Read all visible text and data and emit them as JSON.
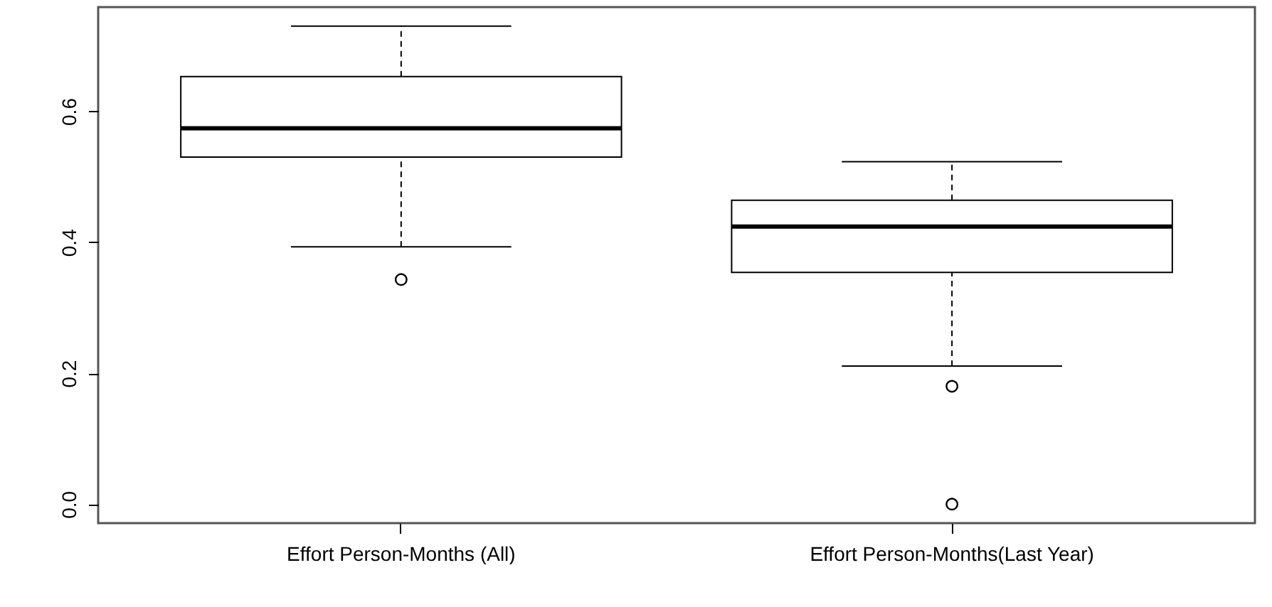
{
  "chart_data": {
    "type": "box",
    "categories": [
      "Effort Person-Months (All)",
      "Effort Person-Months(Last Year)"
    ],
    "boxes": [
      {
        "low": 0.393,
        "q1": 0.53,
        "median": 0.574,
        "q3": 0.653,
        "high": 0.73,
        "outliers": [
          0.343
        ]
      },
      {
        "low": 0.211,
        "q1": 0.354,
        "median": 0.424,
        "q3": 0.464,
        "high": 0.523,
        "outliers": [
          0.18,
          0.0
        ]
      }
    ],
    "ylim": [
      -0.029,
      0.759
    ],
    "yticks": [
      {
        "value": 0.0,
        "label": "0.0"
      },
      {
        "value": 0.2,
        "label": "0.2"
      },
      {
        "value": 0.4,
        "label": "0.4"
      },
      {
        "value": 0.6,
        "label": "0.6"
      }
    ]
  }
}
